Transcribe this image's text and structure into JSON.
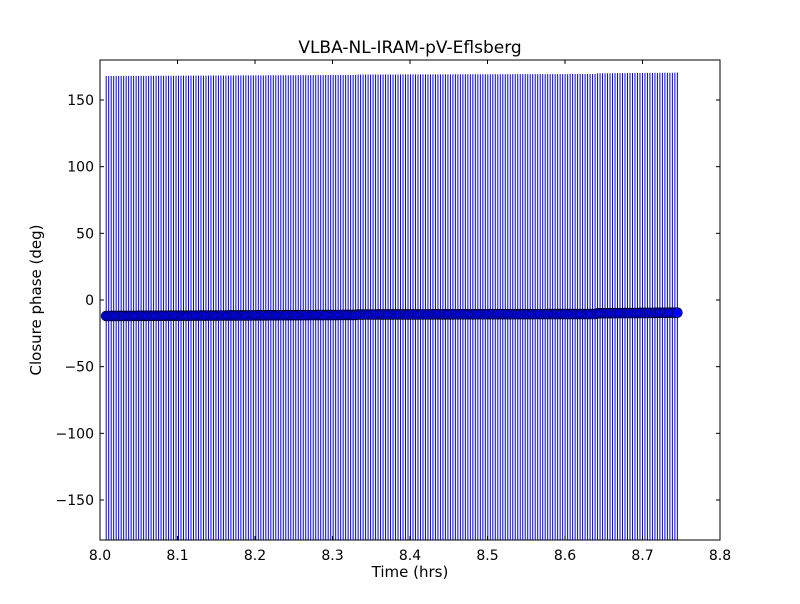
{
  "chart_data": {
    "type": "scatter",
    "title": "VLBA-NL-IRAM-pV-Eflsberg",
    "xlabel": "Time (hrs)",
    "ylabel": "Closure phase (deg)",
    "xlim": [
      8.0,
      8.8
    ],
    "ylim": [
      -180,
      180
    ],
    "xticks": [
      "8.0",
      "8.1",
      "8.2",
      "8.3",
      "8.4",
      "8.5",
      "8.6",
      "8.7",
      "8.8"
    ],
    "xtick_values": [
      8.0,
      8.1,
      8.2,
      8.3,
      8.4,
      8.5,
      8.6,
      8.7,
      8.8
    ],
    "yticks": [
      "−150",
      "−100",
      "−50",
      "0",
      "50",
      "100",
      "150"
    ],
    "ytick_values": [
      -150,
      -100,
      -50,
      0,
      50,
      100,
      150
    ],
    "series": [
      {
        "name": "closure phase",
        "x_start": 8.008,
        "x_end": 8.745,
        "n_points": 230,
        "y_segments": [
          {
            "x_from": 8.008,
            "x_to": 8.33,
            "y_from": -12.0,
            "y_to": -11.2
          },
          {
            "x_from": 8.33,
            "x_to": 8.64,
            "y_from": -10.9,
            "y_to": -10.5
          },
          {
            "x_from": 8.64,
            "x_to": 8.745,
            "y_from": -10.0,
            "y_to": -9.5
          }
        ],
        "error_deg": 180,
        "marker_color": "#0000ff",
        "errorbar_color": "#0000ff"
      }
    ]
  }
}
